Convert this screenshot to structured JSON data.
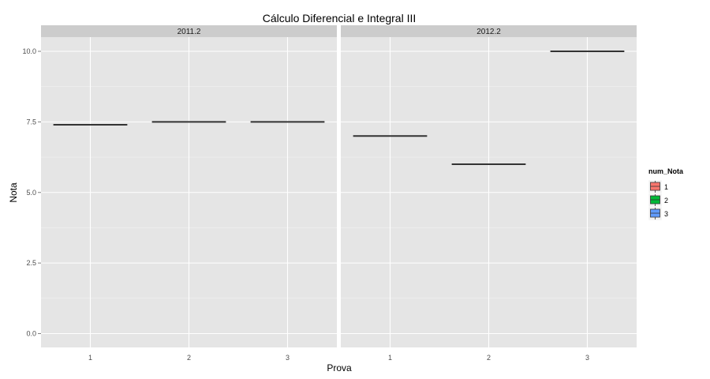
{
  "chart_data": {
    "type": "boxplot",
    "title": "Cálculo Diferencial e Integral III",
    "xlabel": "Prova",
    "ylabel": "Nota",
    "ylim": [
      0,
      10.5
    ],
    "y_ticks": [
      0,
      2.5,
      5,
      7.5,
      10
    ],
    "y_tick_labels": [
      "0.0",
      "2.5",
      "5.0",
      "7.5",
      "10.0"
    ],
    "categories": [
      "1",
      "2",
      "3"
    ],
    "facets": [
      {
        "label": "2011.2",
        "values": [
          7.4,
          7.5,
          7.5
        ]
      },
      {
        "label": "2012.2",
        "values": [
          7.0,
          6.0,
          10.0
        ]
      }
    ],
    "legend": {
      "title": "num_Nota",
      "position": "right",
      "items": [
        {
          "label": "1",
          "color": "#F8766D"
        },
        {
          "label": "2",
          "color": "#00BA38"
        },
        {
          "label": "3",
          "color": "#619CFF"
        }
      ]
    },
    "grid": true,
    "colors": {
      "panel": "#E5E5E5",
      "strip": "#CCCCCC",
      "grid_major": "#FFFFFF",
      "grid_minor": "#F2F2F2",
      "mark": "#333333"
    }
  }
}
